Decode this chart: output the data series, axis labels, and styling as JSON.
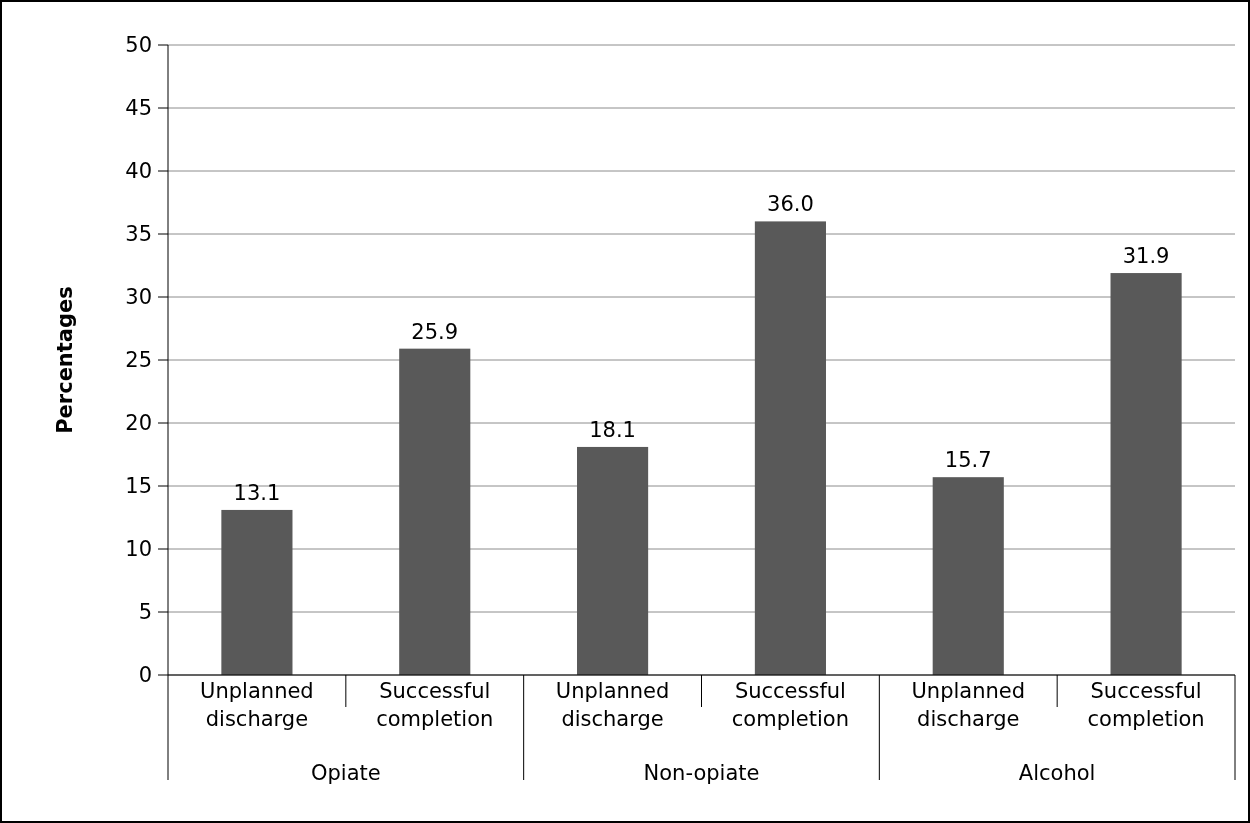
{
  "chart_data": {
    "type": "bar",
    "ylabel": "Percentages",
    "categories": [
      "Opiate",
      "Non-opiate",
      "Alcohol"
    ],
    "series": [
      {
        "name": "Unplanned discharge",
        "color": "#595959",
        "values": [
          13.1,
          18.1,
          15.7
        ],
        "value_labels": [
          "13.1",
          "18.1",
          "15.7"
        ]
      },
      {
        "name": "Successful completion",
        "color": "#595959",
        "values": [
          25.9,
          36.0,
          31.9
        ],
        "value_labels": [
          "25.9",
          "36.0",
          "31.9"
        ]
      }
    ],
    "ylim": [
      0,
      50
    ],
    "yticks": [
      0,
      5,
      10,
      15,
      20,
      25,
      30,
      35,
      40,
      45,
      50
    ],
    "grid": "y"
  }
}
